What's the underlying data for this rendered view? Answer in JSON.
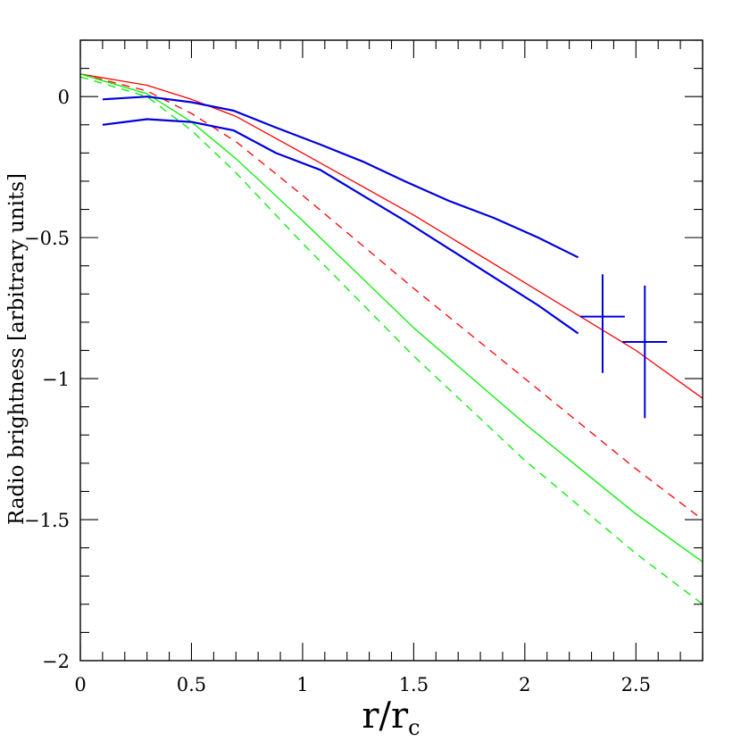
{
  "chart_data": {
    "type": "line",
    "title": "",
    "xlabel": "r/r",
    "xlabel_sub": "c",
    "ylabel": "Radio brightness [arbitrary units]",
    "xlim": [
      0,
      2.8
    ],
    "ylim": [
      -2,
      0.2
    ],
    "x_ticks": [
      0,
      0.5,
      1,
      1.5,
      2,
      2.5
    ],
    "x_tick_labels": [
      "0",
      "0.5",
      "1",
      "1.5",
      "2",
      "2.5"
    ],
    "y_ticks": [
      0,
      -0.5,
      -1,
      -1.5,
      -2
    ],
    "y_tick_labels": [
      "0",
      "−0.5",
      "−1",
      "−1.5",
      "−2"
    ],
    "grid": false,
    "legend": "none",
    "colors": {
      "red": "#ff0000",
      "green": "#00ee00",
      "blue": "#0000dd"
    },
    "series": [
      {
        "color": "#ff0000",
        "dash": false,
        "width": 1.3,
        "x": [
          0,
          0.3,
          0.5,
          0.7,
          1.0,
          1.5,
          2.0,
          2.5,
          2.8
        ],
        "y": [
          0.08,
          0.04,
          -0.01,
          -0.07,
          -0.2,
          -0.42,
          -0.66,
          -0.9,
          -1.07
        ]
      },
      {
        "color": "#ff0000",
        "dash": true,
        "width": 1.3,
        "x": [
          0,
          0.3,
          0.5,
          0.7,
          1.0,
          1.5,
          2.0,
          2.5,
          2.8
        ],
        "y": [
          0.08,
          0.02,
          -0.06,
          -0.16,
          -0.35,
          -0.68,
          -1.0,
          -1.32,
          -1.5
        ]
      },
      {
        "color": "#00ee00",
        "dash": false,
        "width": 1.3,
        "x": [
          0,
          0.3,
          0.5,
          0.7,
          1.0,
          1.5,
          2.0,
          2.5,
          2.8
        ],
        "y": [
          0.08,
          0.01,
          -0.09,
          -0.22,
          -0.44,
          -0.82,
          -1.16,
          -1.48,
          -1.65
        ]
      },
      {
        "color": "#00ee00",
        "dash": true,
        "width": 1.3,
        "x": [
          0,
          0.3,
          0.5,
          0.7,
          1.0,
          1.5,
          2.0,
          2.5,
          2.8
        ],
        "y": [
          0.07,
          0.0,
          -0.12,
          -0.27,
          -0.52,
          -0.92,
          -1.29,
          -1.62,
          -1.8
        ]
      },
      {
        "color": "#0000dd",
        "dash": false,
        "width": 2.2,
        "x": [
          0.1,
          0.3,
          0.5,
          0.69,
          0.88,
          1.08,
          1.27,
          1.46,
          1.66,
          1.86,
          2.06,
          2.24
        ],
        "y": [
          -0.01,
          0.0,
          -0.02,
          -0.05,
          -0.11,
          -0.17,
          -0.23,
          -0.3,
          -0.37,
          -0.43,
          -0.5,
          -0.57
        ]
      },
      {
        "color": "#0000dd",
        "dash": false,
        "width": 2.2,
        "x": [
          0.1,
          0.3,
          0.5,
          0.69,
          0.88,
          1.08,
          1.27,
          1.46,
          1.66,
          1.86,
          2.06,
          2.24
        ],
        "y": [
          -0.1,
          -0.08,
          -0.09,
          -0.12,
          -0.2,
          -0.26,
          -0.35,
          -0.44,
          -0.54,
          -0.64,
          -0.74,
          -0.84
        ]
      }
    ],
    "error_points": [
      {
        "x": 2.35,
        "y": -0.78,
        "xerr": 0.1,
        "yerr": [
          0.15,
          0.2
        ],
        "color": "#0000dd"
      },
      {
        "x": 2.54,
        "y": -0.87,
        "xerr": 0.1,
        "yerr": [
          0.2,
          0.27
        ],
        "color": "#0000dd"
      }
    ]
  }
}
